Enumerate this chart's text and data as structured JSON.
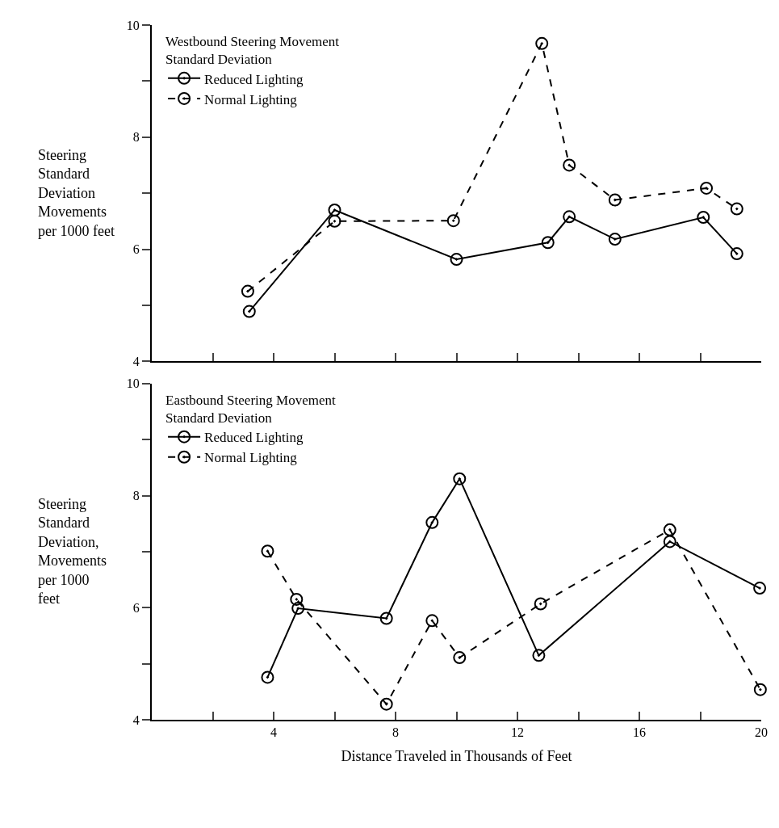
{
  "chart_data": [
    {
      "type": "line",
      "legend_title": "Westbound Steering Movement\nStandard Deviation",
      "ylabel": "Steering\nStandard\nDeviation\nMovements\nper 1000 feet",
      "xlim": [
        0,
        20
      ],
      "xticks": [
        {
          "value": 2,
          "label": null
        },
        {
          "value": 4,
          "label": null
        },
        {
          "value": 6,
          "label": null
        },
        {
          "value": 8,
          "label": null
        },
        {
          "value": 10,
          "label": null
        },
        {
          "value": 12,
          "label": null
        },
        {
          "value": 14,
          "label": null
        },
        {
          "value": 16,
          "label": null
        },
        {
          "value": 18,
          "label": null
        },
        {
          "value": 20,
          "label": null
        }
      ],
      "ylim": [
        4,
        10
      ],
      "yticks": [
        4,
        {
          "value": 5,
          "label": null
        },
        6,
        {
          "value": 7,
          "label": null
        },
        8,
        {
          "value": 9,
          "label": null
        },
        10
      ],
      "tick_labels": "y",
      "legend": "top left",
      "marker": "circle",
      "series": [
        {
          "name": "Reduced Lighting",
          "color": "#000000",
          "line_style": "solid",
          "x": [
            3.2,
            6.0,
            10.0,
            13.0,
            13.7,
            15.2,
            18.1,
            19.2
          ],
          "values": [
            4.89,
            6.7,
            5.82,
            6.12,
            6.58,
            6.18,
            6.57,
            5.92
          ]
        },
        {
          "name": "Normal Lighting",
          "color": "#000000",
          "line_style": "dashed",
          "x": [
            3.15,
            6.0,
            9.9,
            12.8,
            13.7,
            15.2,
            18.2,
            19.2
          ],
          "values": [
            5.25,
            6.5,
            6.51,
            9.67,
            7.5,
            6.88,
            7.09,
            6.72
          ]
        }
      ]
    },
    {
      "type": "line",
      "legend_title": "Eastbound Steering Movement\nStandard Deviation",
      "ylabel": "Steering\nStandard\nDeviation,\nMovements\nper 1000\nfeet",
      "xlabel": "Distance Traveled in Thousands of Feet",
      "xlim": [
        0,
        20
      ],
      "xticks": [
        {
          "value": 2,
          "label": null
        },
        4,
        {
          "value": 6,
          "label": null
        },
        8,
        {
          "value": 10,
          "label": null
        },
        12,
        {
          "value": 14,
          "label": null
        },
        16,
        {
          "value": 18,
          "label": null
        },
        20
      ],
      "ylim": [
        4,
        10
      ],
      "yticks": [
        4,
        {
          "value": 5,
          "label": null
        },
        6,
        {
          "value": 7,
          "label": null
        },
        8,
        {
          "value": 9,
          "label": null
        },
        10
      ],
      "legend": "top left",
      "marker": "circle",
      "series": [
        {
          "name": "Reduced Lighting",
          "color": "#000000",
          "line_style": "solid",
          "x": [
            3.8,
            4.8,
            7.7,
            9.2,
            10.1,
            12.7,
            17.0,
            19.95
          ],
          "values": [
            4.76,
            5.99,
            5.81,
            7.52,
            8.3,
            5.15,
            7.18,
            6.35
          ]
        },
        {
          "name": "Normal Lighting",
          "color": "#000000",
          "line_style": "dashed",
          "x": [
            3.8,
            4.75,
            7.7,
            9.2,
            10.1,
            12.76,
            17.0,
            19.97
          ],
          "values": [
            7.01,
            6.15,
            4.28,
            5.77,
            5.11,
            6.07,
            7.39,
            4.54
          ]
        }
      ]
    }
  ]
}
